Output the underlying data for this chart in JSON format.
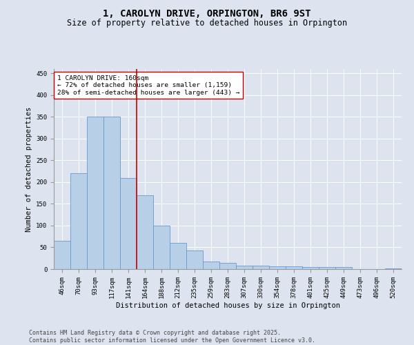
{
  "title": "1, CAROLYN DRIVE, ORPINGTON, BR6 9ST",
  "subtitle": "Size of property relative to detached houses in Orpington",
  "xlabel": "Distribution of detached houses by size in Orpington",
  "ylabel": "Number of detached properties",
  "categories": [
    "46sqm",
    "70sqm",
    "93sqm",
    "117sqm",
    "141sqm",
    "164sqm",
    "188sqm",
    "212sqm",
    "235sqm",
    "259sqm",
    "283sqm",
    "307sqm",
    "330sqm",
    "354sqm",
    "378sqm",
    "401sqm",
    "425sqm",
    "449sqm",
    "473sqm",
    "496sqm",
    "520sqm"
  ],
  "values": [
    65,
    220,
    350,
    350,
    210,
    170,
    100,
    60,
    43,
    18,
    15,
    8,
    8,
    6,
    6,
    4,
    4,
    4,
    0,
    0,
    2
  ],
  "bar_color": "#b8cfe8",
  "bar_edge_color": "#6699cc",
  "bar_linewidth": 0.6,
  "vline_x": 4.5,
  "vline_color": "#cc0000",
  "vline_linewidth": 1.2,
  "annotation_text": "1 CAROLYN DRIVE: 160sqm\n← 72% of detached houses are smaller (1,159)\n28% of semi-detached houses are larger (443) →",
  "annotation_box_color": "#ffffff",
  "annotation_box_edge": "#cc0000",
  "ylim": [
    0,
    460
  ],
  "yticks": [
    0,
    50,
    100,
    150,
    200,
    250,
    300,
    350,
    400,
    450
  ],
  "bg_color": "#dde4f0",
  "plot_bg_color": "#dde4f0",
  "footer_line1": "Contains HM Land Registry data © Crown copyright and database right 2025.",
  "footer_line2": "Contains public sector information licensed under the Open Government Licence v3.0.",
  "title_fontsize": 10,
  "subtitle_fontsize": 8.5,
  "xlabel_fontsize": 7.5,
  "ylabel_fontsize": 7.5,
  "tick_fontsize": 6.5,
  "annotation_fontsize": 6.8,
  "footer_fontsize": 6.0
}
